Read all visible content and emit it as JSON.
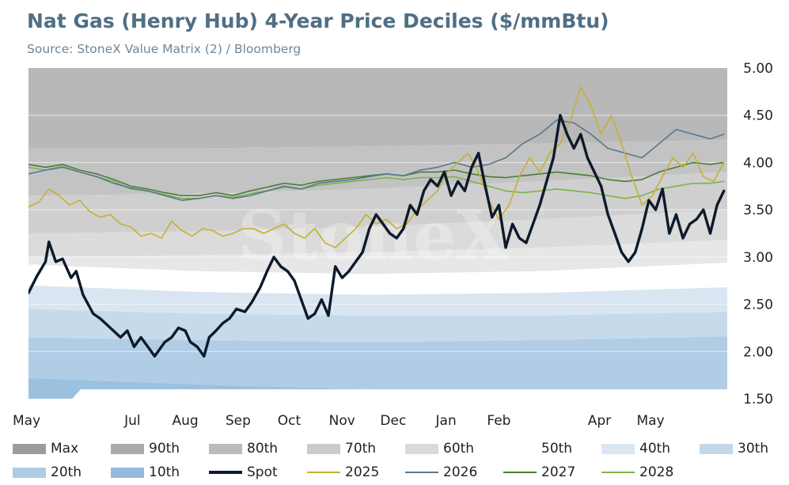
{
  "chart_data": {
    "type": "line",
    "title": "Nat Gas (Henry Hub) 4-Year Price Deciles ($/mmBtu)",
    "subtitle": "Source: StoneX Value Matrix (2) / Bloomberg",
    "watermark": "StoneX",
    "x_ticks": [
      "May",
      "Jul",
      "Aug",
      "Sep",
      "Oct",
      "Nov",
      "Dec",
      "Jan",
      "Feb",
      "Apr",
      "May"
    ],
    "x_tick_days": [
      0,
      61,
      92,
      123,
      153,
      184,
      214,
      245,
      276,
      335,
      365
    ],
    "x_range_days": [
      0,
      410
    ],
    "ylim": [
      1.5,
      5.0
    ],
    "y_ticks": [
      1.5,
      2.0,
      2.5,
      3.0,
      3.5,
      4.0,
      4.5,
      5.0
    ],
    "y_tick_labels": [
      "1.50",
      "2.00",
      "2.50",
      "3.00",
      "3.50",
      "4.00",
      "4.50",
      "5.00"
    ],
    "grid": "horizontal",
    "legend_position": "bottom",
    "bands": [
      {
        "name": "Max",
        "color": "#b8b8b8",
        "x": [
          0,
          180,
          410
        ],
        "values": [
          5.0,
          5.0,
          5.0
        ]
      },
      {
        "name": "90th",
        "color": "#c3c3c3",
        "x": [
          0,
          100,
          200,
          300,
          410
        ],
        "values": [
          4.15,
          4.15,
          4.17,
          4.2,
          4.24
        ]
      },
      {
        "name": "80th",
        "color": "#cfcfcf",
        "x": [
          0,
          100,
          200,
          300,
          410
        ],
        "values": [
          3.65,
          3.67,
          3.72,
          3.8,
          3.9
        ]
      },
      {
        "name": "70th",
        "color": "#dbdbdb",
        "x": [
          0,
          100,
          200,
          300,
          410
        ],
        "values": [
          3.25,
          3.27,
          3.32,
          3.4,
          3.5
        ]
      },
      {
        "name": "60th",
        "color": "#e7e7e7",
        "x": [
          0,
          100,
          200,
          300,
          410
        ],
        "values": [
          3.0,
          3.02,
          3.05,
          3.1,
          3.18
        ]
      },
      {
        "name": "50th",
        "color": "#ffffff",
        "x": [
          0,
          100,
          200,
          300,
          410
        ],
        "values": [
          2.92,
          2.85,
          2.82,
          2.85,
          2.94
        ]
      },
      {
        "name": "40th",
        "color": "#d9e6f1",
        "x": [
          0,
          100,
          200,
          300,
          410
        ],
        "values": [
          2.7,
          2.63,
          2.6,
          2.62,
          2.68
        ]
      },
      {
        "name": "30th",
        "color": "#c6daeb",
        "x": [
          0,
          100,
          200,
          300,
          410
        ],
        "values": [
          2.45,
          2.4,
          2.38,
          2.38,
          2.42
        ]
      },
      {
        "name": "20th",
        "color": "#b1cde5",
        "x": [
          0,
          100,
          200,
          300,
          410
        ],
        "values": [
          2.15,
          2.12,
          2.1,
          2.12,
          2.16
        ]
      },
      {
        "name": "10th",
        "color": "#9cc1de",
        "x": [
          0,
          100,
          200,
          300,
          410
        ],
        "values": [
          1.72,
          1.65,
          1.6,
          1.58,
          1.58
        ]
      }
    ],
    "min_floor": {
      "x": [
        0,
        28,
        28,
        410
      ],
      "values": [
        1.5,
        1.5,
        1.6,
        1.6
      ]
    },
    "series": [
      {
        "name": "Spot",
        "color": "#0d1a2b",
        "width": 3.4,
        "x": [
          0,
          5,
          10,
          12,
          16,
          20,
          25,
          28,
          32,
          38,
          42,
          48,
          54,
          58,
          62,
          66,
          70,
          74,
          80,
          84,
          88,
          92,
          95,
          99,
          103,
          106,
          110,
          114,
          118,
          122,
          127,
          131,
          136,
          140,
          144,
          148,
          152,
          156,
          160,
          164,
          168,
          172,
          176,
          180,
          184,
          188,
          192,
          196,
          200,
          204,
          208,
          212,
          216,
          220,
          224,
          228,
          232,
          236,
          240,
          244,
          248,
          252,
          256,
          260,
          264,
          268,
          272,
          276,
          280,
          284,
          288,
          292,
          296,
          300,
          304,
          308,
          312,
          316,
          320,
          324,
          328,
          332,
          336,
          340,
          344,
          348,
          352,
          356,
          360,
          364,
          368,
          372,
          376,
          380,
          384,
          388,
          392,
          396,
          400,
          404,
          408
        ],
        "values": [
          2.62,
          2.8,
          2.95,
          3.16,
          2.95,
          2.98,
          2.78,
          2.85,
          2.6,
          2.4,
          2.35,
          2.25,
          2.15,
          2.22,
          2.05,
          2.15,
          2.05,
          1.95,
          2.1,
          2.15,
          2.25,
          2.22,
          2.1,
          2.05,
          1.95,
          2.15,
          2.22,
          2.3,
          2.35,
          2.45,
          2.42,
          2.52,
          2.68,
          2.85,
          3.0,
          2.9,
          2.85,
          2.75,
          2.55,
          2.35,
          2.4,
          2.55,
          2.38,
          2.9,
          2.78,
          2.85,
          2.95,
          3.05,
          3.3,
          3.45,
          3.35,
          3.25,
          3.2,
          3.3,
          3.55,
          3.45,
          3.7,
          3.82,
          3.75,
          3.9,
          3.65,
          3.8,
          3.7,
          3.95,
          4.1,
          3.75,
          3.42,
          3.55,
          3.1,
          3.35,
          3.2,
          3.15,
          3.35,
          3.55,
          3.8,
          4.05,
          4.5,
          4.3,
          4.15,
          4.3,
          4.05,
          3.9,
          3.75,
          3.45,
          3.25,
          3.05,
          2.95,
          3.05,
          3.3,
          3.6,
          3.5,
          3.72,
          3.25,
          3.45,
          3.2,
          3.35,
          3.4,
          3.5,
          3.25,
          3.55,
          3.7
        ]
      },
      {
        "name": "2025",
        "color": "#c5b033",
        "width": 1.6,
        "x": [
          0,
          6,
          12,
          18,
          24,
          30,
          36,
          42,
          48,
          54,
          60,
          66,
          72,
          78,
          84,
          90,
          96,
          102,
          108,
          114,
          120,
          126,
          132,
          138,
          144,
          150,
          156,
          162,
          168,
          174,
          180,
          186,
          192,
          198,
          204,
          210,
          216,
          222,
          228,
          234,
          240,
          246,
          252,
          258,
          264,
          270,
          276,
          282,
          288,
          294,
          300,
          306,
          312,
          318,
          324,
          330,
          336,
          342,
          348,
          354,
          360,
          366,
          372,
          378,
          384,
          390,
          396,
          402,
          408
        ],
        "values": [
          3.53,
          3.58,
          3.72,
          3.65,
          3.55,
          3.6,
          3.48,
          3.42,
          3.45,
          3.35,
          3.32,
          3.22,
          3.25,
          3.2,
          3.38,
          3.28,
          3.22,
          3.3,
          3.28,
          3.22,
          3.25,
          3.3,
          3.3,
          3.25,
          3.3,
          3.35,
          3.25,
          3.2,
          3.3,
          3.15,
          3.1,
          3.2,
          3.3,
          3.45,
          3.35,
          3.4,
          3.3,
          3.35,
          3.5,
          3.6,
          3.7,
          3.9,
          4.0,
          4.1,
          3.9,
          3.6,
          3.4,
          3.55,
          3.85,
          4.05,
          3.9,
          4.1,
          4.2,
          4.45,
          4.8,
          4.6,
          4.3,
          4.5,
          4.2,
          3.85,
          3.55,
          3.65,
          3.85,
          4.05,
          3.95,
          4.1,
          3.85,
          3.8,
          4.0
        ]
      },
      {
        "name": "2026",
        "color": "#58788e",
        "width": 1.6,
        "x": [
          0,
          10,
          20,
          30,
          40,
          50,
          60,
          70,
          80,
          90,
          100,
          110,
          120,
          130,
          140,
          150,
          160,
          170,
          180,
          190,
          200,
          210,
          220,
          230,
          240,
          250,
          260,
          270,
          280,
          290,
          300,
          310,
          320,
          330,
          340,
          350,
          360,
          370,
          380,
          390,
          400,
          408
        ],
        "values": [
          3.88,
          3.92,
          3.95,
          3.9,
          3.85,
          3.78,
          3.73,
          3.7,
          3.65,
          3.6,
          3.62,
          3.65,
          3.62,
          3.65,
          3.7,
          3.75,
          3.72,
          3.78,
          3.8,
          3.82,
          3.85,
          3.88,
          3.86,
          3.92,
          3.95,
          4.0,
          3.95,
          3.98,
          4.05,
          4.2,
          4.3,
          4.45,
          4.42,
          4.3,
          4.15,
          4.1,
          4.05,
          4.2,
          4.35,
          4.3,
          4.25,
          4.3
        ]
      },
      {
        "name": "2027",
        "color": "#4a7d37",
        "width": 1.6,
        "x": [
          0,
          10,
          20,
          30,
          40,
          50,
          60,
          70,
          80,
          90,
          100,
          110,
          120,
          130,
          140,
          150,
          160,
          170,
          180,
          190,
          200,
          210,
          220,
          230,
          240,
          250,
          260,
          270,
          280,
          290,
          300,
          310,
          320,
          330,
          340,
          350,
          360,
          370,
          380,
          390,
          400,
          408
        ],
        "values": [
          3.98,
          3.95,
          3.98,
          3.92,
          3.88,
          3.82,
          3.75,
          3.72,
          3.68,
          3.65,
          3.65,
          3.68,
          3.65,
          3.7,
          3.74,
          3.78,
          3.76,
          3.8,
          3.82,
          3.84,
          3.86,
          3.88,
          3.86,
          3.9,
          3.9,
          3.92,
          3.88,
          3.85,
          3.84,
          3.86,
          3.88,
          3.9,
          3.88,
          3.86,
          3.82,
          3.8,
          3.82,
          3.9,
          3.95,
          4.0,
          3.98,
          4.0
        ]
      },
      {
        "name": "2028",
        "color": "#7fb24a",
        "width": 1.6,
        "x": [
          0,
          10,
          20,
          30,
          40,
          50,
          60,
          70,
          80,
          90,
          100,
          110,
          120,
          130,
          140,
          150,
          160,
          170,
          180,
          190,
          200,
          210,
          220,
          230,
          240,
          250,
          260,
          270,
          280,
          290,
          300,
          310,
          320,
          330,
          340,
          350,
          360,
          370,
          380,
          390,
          400,
          408
        ],
        "values": [
          3.95,
          3.92,
          3.96,
          3.9,
          3.85,
          3.8,
          3.72,
          3.7,
          3.66,
          3.62,
          3.62,
          3.65,
          3.63,
          3.67,
          3.7,
          3.74,
          3.72,
          3.76,
          3.78,
          3.8,
          3.82,
          3.84,
          3.82,
          3.84,
          3.84,
          3.85,
          3.8,
          3.75,
          3.7,
          3.68,
          3.7,
          3.72,
          3.7,
          3.68,
          3.65,
          3.62,
          3.65,
          3.72,
          3.75,
          3.78,
          3.78,
          3.8
        ]
      }
    ]
  },
  "legend": {
    "items": [
      {
        "name": "Max",
        "kind": "swatch",
        "color": "#9c9c9c"
      },
      {
        "name": "90th",
        "kind": "swatch",
        "color": "#ababab"
      },
      {
        "name": "80th",
        "kind": "swatch",
        "color": "#bbbbbb"
      },
      {
        "name": "70th",
        "kind": "swatch",
        "color": "#cbcbcb"
      },
      {
        "name": "60th",
        "kind": "swatch",
        "color": "#dadada"
      },
      {
        "name": "50th",
        "kind": "swatch",
        "color": "#ffffff"
      },
      {
        "name": "40th",
        "kind": "swatch",
        "color": "#dae7f2"
      },
      {
        "name": "30th",
        "kind": "swatch",
        "color": "#c3d8ea"
      },
      {
        "name": "20th",
        "kind": "swatch",
        "color": "#aecbe4"
      },
      {
        "name": "10th",
        "kind": "swatch",
        "color": "#93bbdc"
      },
      {
        "name": "Spot",
        "kind": "line",
        "color": "#0d1a2b",
        "width": 4
      },
      {
        "name": "2025",
        "kind": "line",
        "color": "#c5b033",
        "width": 2
      },
      {
        "name": "2026",
        "kind": "line",
        "color": "#58788e",
        "width": 2
      },
      {
        "name": "2027",
        "kind": "line",
        "color": "#4a7d37",
        "width": 2
      },
      {
        "name": "2028",
        "kind": "line",
        "color": "#7fb24a",
        "width": 2
      }
    ]
  }
}
